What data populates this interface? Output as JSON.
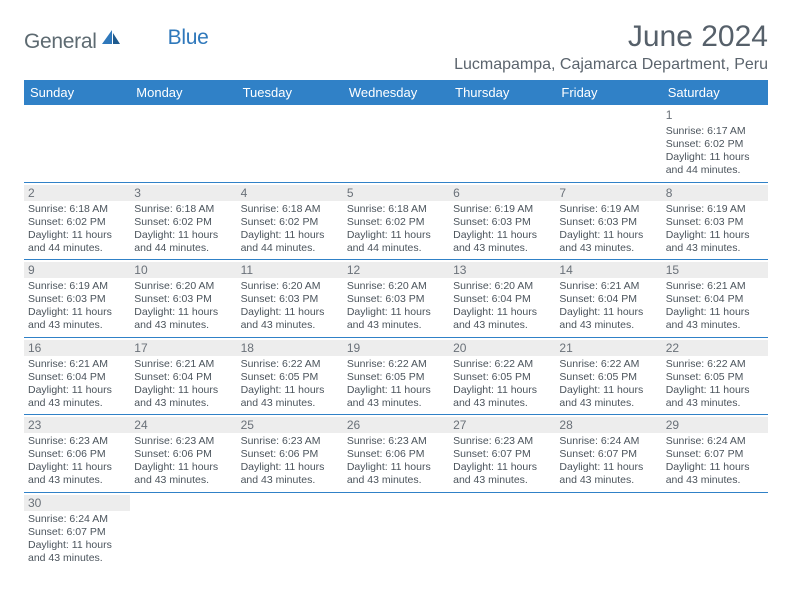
{
  "brand": {
    "part1": "General",
    "part2": "Blue",
    "sail_color": "#2f78bb",
    "text_gray": "#5d6a71"
  },
  "title": "June 2024",
  "location": "Lucmapampa, Cajamarca Department, Peru",
  "header_bg": "#3081c7",
  "weekdays": [
    "Sunday",
    "Monday",
    "Tuesday",
    "Wednesday",
    "Thursday",
    "Friday",
    "Saturday"
  ],
  "days": {
    "1": {
      "sr": "6:17 AM",
      "ss": "6:02 PM",
      "dl": "11 hours and 44 minutes."
    },
    "2": {
      "sr": "6:18 AM",
      "ss": "6:02 PM",
      "dl": "11 hours and 44 minutes."
    },
    "3": {
      "sr": "6:18 AM",
      "ss": "6:02 PM",
      "dl": "11 hours and 44 minutes."
    },
    "4": {
      "sr": "6:18 AM",
      "ss": "6:02 PM",
      "dl": "11 hours and 44 minutes."
    },
    "5": {
      "sr": "6:18 AM",
      "ss": "6:02 PM",
      "dl": "11 hours and 44 minutes."
    },
    "6": {
      "sr": "6:19 AM",
      "ss": "6:03 PM",
      "dl": "11 hours and 43 minutes."
    },
    "7": {
      "sr": "6:19 AM",
      "ss": "6:03 PM",
      "dl": "11 hours and 43 minutes."
    },
    "8": {
      "sr": "6:19 AM",
      "ss": "6:03 PM",
      "dl": "11 hours and 43 minutes."
    },
    "9": {
      "sr": "6:19 AM",
      "ss": "6:03 PM",
      "dl": "11 hours and 43 minutes."
    },
    "10": {
      "sr": "6:20 AM",
      "ss": "6:03 PM",
      "dl": "11 hours and 43 minutes."
    },
    "11": {
      "sr": "6:20 AM",
      "ss": "6:03 PM",
      "dl": "11 hours and 43 minutes."
    },
    "12": {
      "sr": "6:20 AM",
      "ss": "6:03 PM",
      "dl": "11 hours and 43 minutes."
    },
    "13": {
      "sr": "6:20 AM",
      "ss": "6:04 PM",
      "dl": "11 hours and 43 minutes."
    },
    "14": {
      "sr": "6:21 AM",
      "ss": "6:04 PM",
      "dl": "11 hours and 43 minutes."
    },
    "15": {
      "sr": "6:21 AM",
      "ss": "6:04 PM",
      "dl": "11 hours and 43 minutes."
    },
    "16": {
      "sr": "6:21 AM",
      "ss": "6:04 PM",
      "dl": "11 hours and 43 minutes."
    },
    "17": {
      "sr": "6:21 AM",
      "ss": "6:04 PM",
      "dl": "11 hours and 43 minutes."
    },
    "18": {
      "sr": "6:22 AM",
      "ss": "6:05 PM",
      "dl": "11 hours and 43 minutes."
    },
    "19": {
      "sr": "6:22 AM",
      "ss": "6:05 PM",
      "dl": "11 hours and 43 minutes."
    },
    "20": {
      "sr": "6:22 AM",
      "ss": "6:05 PM",
      "dl": "11 hours and 43 minutes."
    },
    "21": {
      "sr": "6:22 AM",
      "ss": "6:05 PM",
      "dl": "11 hours and 43 minutes."
    },
    "22": {
      "sr": "6:22 AM",
      "ss": "6:05 PM",
      "dl": "11 hours and 43 minutes."
    },
    "23": {
      "sr": "6:23 AM",
      "ss": "6:06 PM",
      "dl": "11 hours and 43 minutes."
    },
    "24": {
      "sr": "6:23 AM",
      "ss": "6:06 PM",
      "dl": "11 hours and 43 minutes."
    },
    "25": {
      "sr": "6:23 AM",
      "ss": "6:06 PM",
      "dl": "11 hours and 43 minutes."
    },
    "26": {
      "sr": "6:23 AM",
      "ss": "6:06 PM",
      "dl": "11 hours and 43 minutes."
    },
    "27": {
      "sr": "6:23 AM",
      "ss": "6:07 PM",
      "dl": "11 hours and 43 minutes."
    },
    "28": {
      "sr": "6:24 AM",
      "ss": "6:07 PM",
      "dl": "11 hours and 43 minutes."
    },
    "29": {
      "sr": "6:24 AM",
      "ss": "6:07 PM",
      "dl": "11 hours and 43 minutes."
    },
    "30": {
      "sr": "6:24 AM",
      "ss": "6:07 PM",
      "dl": "11 hours and 43 minutes."
    }
  },
  "labels": {
    "sunrise": "Sunrise: ",
    "sunset": "Sunset: ",
    "daylight": "Daylight: "
  },
  "layout": {
    "first_weekday_index": 6,
    "num_days": 30,
    "daynum_bg": "#ededed",
    "cell_border": "#3081c7",
    "text_color": "#4b545c"
  }
}
